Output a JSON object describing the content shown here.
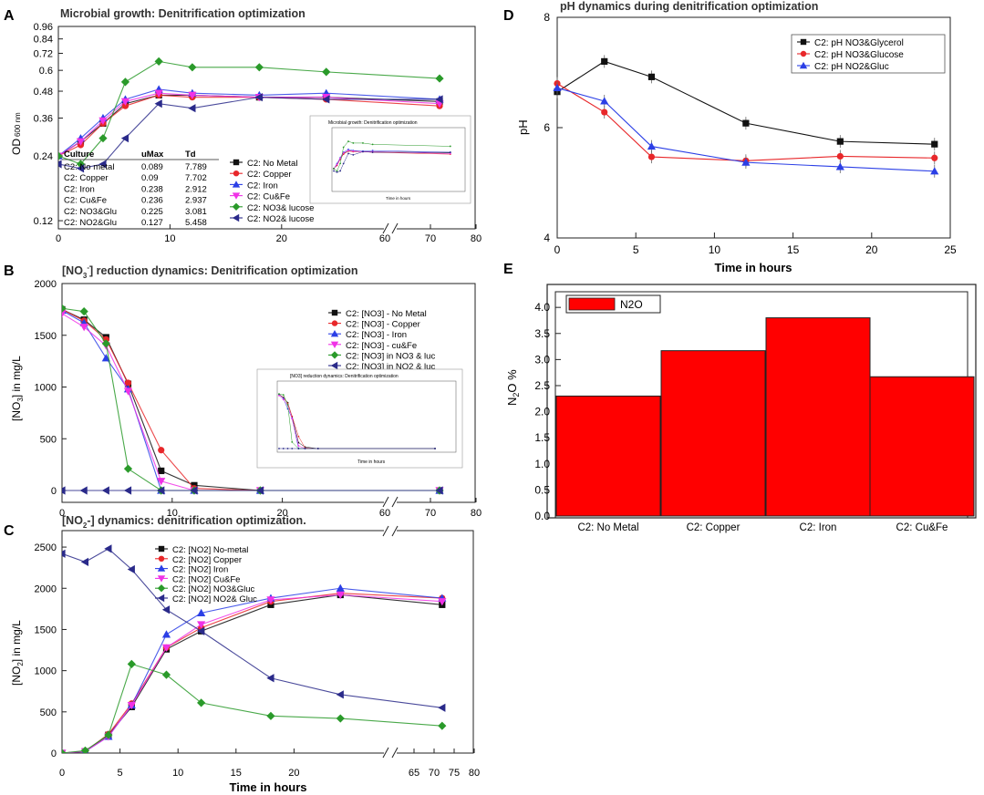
{
  "panels": {
    "A": {
      "letter": "A",
      "title": "Microbial growth: Denitrification optimization",
      "ylabel": "OD",
      "ylabel_sub": "600 nm",
      "xticks": [
        "0",
        "10",
        "20",
        "60",
        "70",
        "80"
      ],
      "yticks": [
        "0.12",
        "0.24",
        "0.36",
        "0.48",
        "0.6",
        "0.72",
        "0.84",
        "0.96"
      ],
      "table": {
        "headers": [
          "Culture",
          "uMax",
          "Td"
        ],
        "rows": [
          [
            "C2: No metal",
            "0.089",
            "7.789"
          ],
          [
            "C2: Copper",
            "0.09",
            "7.702"
          ],
          [
            "C2: Iron",
            "0.238",
            "2.912"
          ],
          [
            "C2: Cu&Fe",
            "0.236",
            "2.937"
          ],
          [
            "C2: NO3&Glu",
            "0.225",
            "3.081"
          ],
          [
            "C2: NO2&Glu",
            "0.127",
            "5.458"
          ]
        ]
      },
      "legend": [
        "C2: No Metal",
        "C2: Copper",
        "C2: Iron",
        "C2: Cu&Fe",
        "C2: NO3& lucose",
        "C2: NO2& lucose"
      ],
      "inset_title": "Microbial growth: Denitrification optimization",
      "inset_xlabel": "Time in hours"
    },
    "B": {
      "letter": "B",
      "title": "[NO3-] reduction dynamics: Denitrification optimization",
      "ylabel": "[NO3] in mg/L",
      "xticks": [
        "0",
        "10",
        "20",
        "60",
        "70",
        "80"
      ],
      "yticks": [
        "0",
        "500",
        "1000",
        "1500",
        "2000"
      ],
      "legend": [
        "C2: [NO3] - No Metal",
        "C2: [NO3] - Copper",
        "C2: [NO3] - Iron",
        "C2: [NO3] - cu&Fe",
        "C2: [NO3] in NO3 & luc",
        "C2: [NO3] in NO2 & luc"
      ],
      "inset_title": "[NO3] reduction dynamics: Denitrification optimization",
      "inset_xlabel": "Time in hours"
    },
    "C": {
      "letter": "C",
      "title": "[NO2-] dynamics: denitrification optimization.",
      "ylabel": "[NO2] in mg/L",
      "xlabel": "Time in hours",
      "xticks": [
        "0",
        "5",
        "10",
        "15",
        "20",
        "65",
        "70",
        "75",
        "80"
      ],
      "yticks": [
        "0",
        "500",
        "1000",
        "1500",
        "2000",
        "2500"
      ],
      "legend": [
        "C2: [NO2] No-metal",
        "C2: [NO2] Copper",
        "C2: [NO2] Iron",
        "C2: [NO2] Cu&Fe",
        "C2: [NO2] NO3&Gluc",
        "C2: [NO2] NO2& Gluc"
      ]
    },
    "D": {
      "letter": "D",
      "title": "pH dynamics during denitrification optimization",
      "ylabel": "pH",
      "xlabel": "Time in hours",
      "xticks": [
        "0",
        "5",
        "10",
        "15",
        "20",
        "25"
      ],
      "yticks": [
        "4",
        "6",
        "8"
      ],
      "legend": [
        "C2: pH NO3&Glycerol",
        "C2: pH NO3&Glucose",
        "C2: pH NO2&Gluc"
      ]
    },
    "E": {
      "letter": "E",
      "ylabel": "N2O %",
      "yticks": [
        "0.0",
        "0.5",
        "1.0",
        "1.5",
        "2.0",
        "2.5",
        "3.0",
        "3.5",
        "4.0"
      ],
      "legend": [
        "N2O"
      ]
    }
  },
  "colors": {
    "black": "#111111",
    "red": "#e8272a",
    "blue": "#2b3fe6",
    "magenta": "#f032e6",
    "green": "#2a9a2a",
    "navy": "#2a2a8a",
    "darkgray": "#444444",
    "bar": "#ff0000"
  },
  "chart_data": [
    {
      "id": "A",
      "type": "line",
      "title": "Microbial growth: Denitrification optimization",
      "xlabel": "",
      "ylabel": "OD 600 nm",
      "scale": "log",
      "ylim": [
        0.11,
        0.96
      ],
      "series": [
        {
          "name": "C2: No Metal",
          "x": [
            0,
            2,
            4,
            6,
            9,
            12,
            18,
            24,
            72
          ],
          "y": [
            0.24,
            0.28,
            0.34,
            0.42,
            0.46,
            0.46,
            0.45,
            0.45,
            0.43
          ]
        },
        {
          "name": "C2: Copper",
          "x": [
            0,
            2,
            4,
            6,
            9,
            12,
            18,
            24,
            72
          ],
          "y": [
            0.24,
            0.27,
            0.34,
            0.41,
            0.46,
            0.45,
            0.45,
            0.44,
            0.41
          ]
        },
        {
          "name": "C2: Iron",
          "x": [
            0,
            2,
            4,
            6,
            9,
            12,
            18,
            24,
            72
          ],
          "y": [
            0.24,
            0.29,
            0.36,
            0.44,
            0.49,
            0.47,
            0.46,
            0.47,
            0.44
          ]
        },
        {
          "name": "C2: Cu&Fe",
          "x": [
            0,
            2,
            4,
            6,
            9,
            12,
            18,
            24,
            72
          ],
          "y": [
            0.24,
            0.28,
            0.35,
            0.43,
            0.47,
            0.46,
            0.45,
            0.45,
            0.42
          ]
        },
        {
          "name": "C2: NO3& lucose",
          "x": [
            0,
            2,
            4,
            6,
            9,
            12,
            18,
            24,
            72
          ],
          "y": [
            0.24,
            0.22,
            0.29,
            0.53,
            0.66,
            0.62,
            0.62,
            0.59,
            0.55
          ]
        },
        {
          "name": "C2: NO2& lucose",
          "x": [
            0,
            2,
            4,
            6,
            9,
            12,
            18,
            24,
            72
          ],
          "y": [
            0.22,
            0.21,
            0.22,
            0.29,
            0.42,
            0.4,
            0.45,
            0.44,
            0.44
          ]
        }
      ]
    },
    {
      "id": "B",
      "type": "line",
      "title": "[NO3-] reduction dynamics: Denitrification optimization",
      "xlabel": "",
      "ylabel": "[NO3] in mg/L",
      "ylim": [
        0,
        2000
      ],
      "series": [
        {
          "name": "C2: [NO3] - No Metal",
          "x": [
            0,
            2,
            4,
            6,
            9,
            12,
            18,
            72
          ],
          "y": [
            1750,
            1650,
            1480,
            1030,
            190,
            50,
            0,
            0
          ]
        },
        {
          "name": "C2: [NO3] - Copper",
          "x": [
            0,
            2,
            4,
            6,
            9,
            12,
            18,
            72
          ],
          "y": [
            1750,
            1640,
            1460,
            1040,
            390,
            20,
            0,
            0
          ]
        },
        {
          "name": "C2: [NO3] - Iron",
          "x": [
            0,
            2,
            4,
            6,
            9,
            12,
            18,
            72
          ],
          "y": [
            1740,
            1620,
            1280,
            980,
            0,
            0,
            0,
            0
          ]
        },
        {
          "name": "C2: [NO3] - cu&Fe",
          "x": [
            0,
            2,
            4,
            6,
            9,
            12,
            18,
            72
          ],
          "y": [
            1710,
            1580,
            1400,
            960,
            90,
            0,
            0,
            0
          ]
        },
        {
          "name": "C2: [NO3] in NO3 & luc",
          "x": [
            0,
            2,
            4,
            6,
            9,
            12,
            18,
            72
          ],
          "y": [
            1760,
            1730,
            1420,
            210,
            0,
            0,
            0,
            0
          ]
        },
        {
          "name": "C2: [NO3] in NO2 & luc",
          "x": [
            0,
            2,
            4,
            6,
            9,
            12,
            18,
            72
          ],
          "y": [
            0,
            0,
            0,
            0,
            0,
            0,
            0,
            0
          ]
        }
      ]
    },
    {
      "id": "C",
      "type": "line",
      "title": "[NO2-] dynamics: denitrification optimization.",
      "xlabel": "Time in hours",
      "ylabel": "[NO2] in mg/L",
      "ylim": [
        0,
        2700
      ],
      "series": [
        {
          "name": "C2: [NO2] No-metal",
          "x": [
            0,
            2,
            4,
            6,
            9,
            12,
            18,
            24,
            72
          ],
          "y": [
            0,
            20,
            220,
            560,
            1260,
            1480,
            1800,
            1920,
            1800
          ]
        },
        {
          "name": "C2: [NO2] Copper",
          "x": [
            0,
            2,
            4,
            6,
            9,
            12,
            18,
            24,
            72
          ],
          "y": [
            0,
            20,
            230,
            600,
            1280,
            1520,
            1840,
            1940,
            1880
          ]
        },
        {
          "name": "C2: [NO2] Iron",
          "x": [
            0,
            2,
            4,
            6,
            9,
            12,
            18,
            24,
            72
          ],
          "y": [
            0,
            20,
            200,
            580,
            1440,
            1700,
            1880,
            2000,
            1880
          ]
        },
        {
          "name": "C2: [NO2] Cu&Fe",
          "x": [
            0,
            2,
            4,
            6,
            9,
            12,
            18,
            24,
            72
          ],
          "y": [
            0,
            20,
            200,
            580,
            1280,
            1560,
            1860,
            1920,
            1840
          ]
        },
        {
          "name": "C2: [NO2] NO3&Gluc",
          "x": [
            0,
            2,
            4,
            6,
            9,
            12,
            18,
            24,
            72
          ],
          "y": [
            0,
            30,
            220,
            1080,
            950,
            610,
            450,
            420,
            330
          ]
        },
        {
          "name": "C2: [NO2] NO2& Gluc",
          "x": [
            0,
            2,
            4,
            6,
            9,
            12,
            18,
            24,
            72
          ],
          "y": [
            2420,
            2320,
            2480,
            2230,
            1740,
            1480,
            910,
            710,
            550
          ]
        }
      ]
    },
    {
      "id": "D",
      "type": "line",
      "title": "pH dynamics during denitrification optimization",
      "xlabel": "Time in hours",
      "ylabel": "pH",
      "xlim": [
        0,
        25
      ],
      "ylim": [
        4,
        8
      ],
      "series": [
        {
          "name": "C2: pH NO3&Glycerol",
          "x": [
            0,
            3,
            6,
            12,
            18,
            24
          ],
          "y": [
            6.65,
            7.2,
            6.92,
            6.08,
            5.75,
            5.7
          ]
        },
        {
          "name": "C2: pH NO3&Glucose",
          "x": [
            0,
            3,
            6,
            12,
            18,
            24
          ],
          "y": [
            6.8,
            6.28,
            5.47,
            5.4,
            5.48,
            5.45
          ]
        },
        {
          "name": "C2: pH NO2&Gluc",
          "x": [
            0,
            3,
            6,
            12,
            18,
            24
          ],
          "y": [
            6.72,
            6.48,
            5.66,
            5.37,
            5.29,
            5.21
          ]
        }
      ]
    },
    {
      "id": "E",
      "type": "bar",
      "title": "",
      "xlabel": "",
      "ylabel": "N2O %",
      "ylim": [
        0,
        4.3
      ],
      "categories": [
        "C2: No Metal",
        "C2: Copper",
        "C2: Iron",
        "C2: Cu&Fe"
      ],
      "values": [
        2.3,
        3.17,
        3.8,
        2.67
      ]
    }
  ]
}
